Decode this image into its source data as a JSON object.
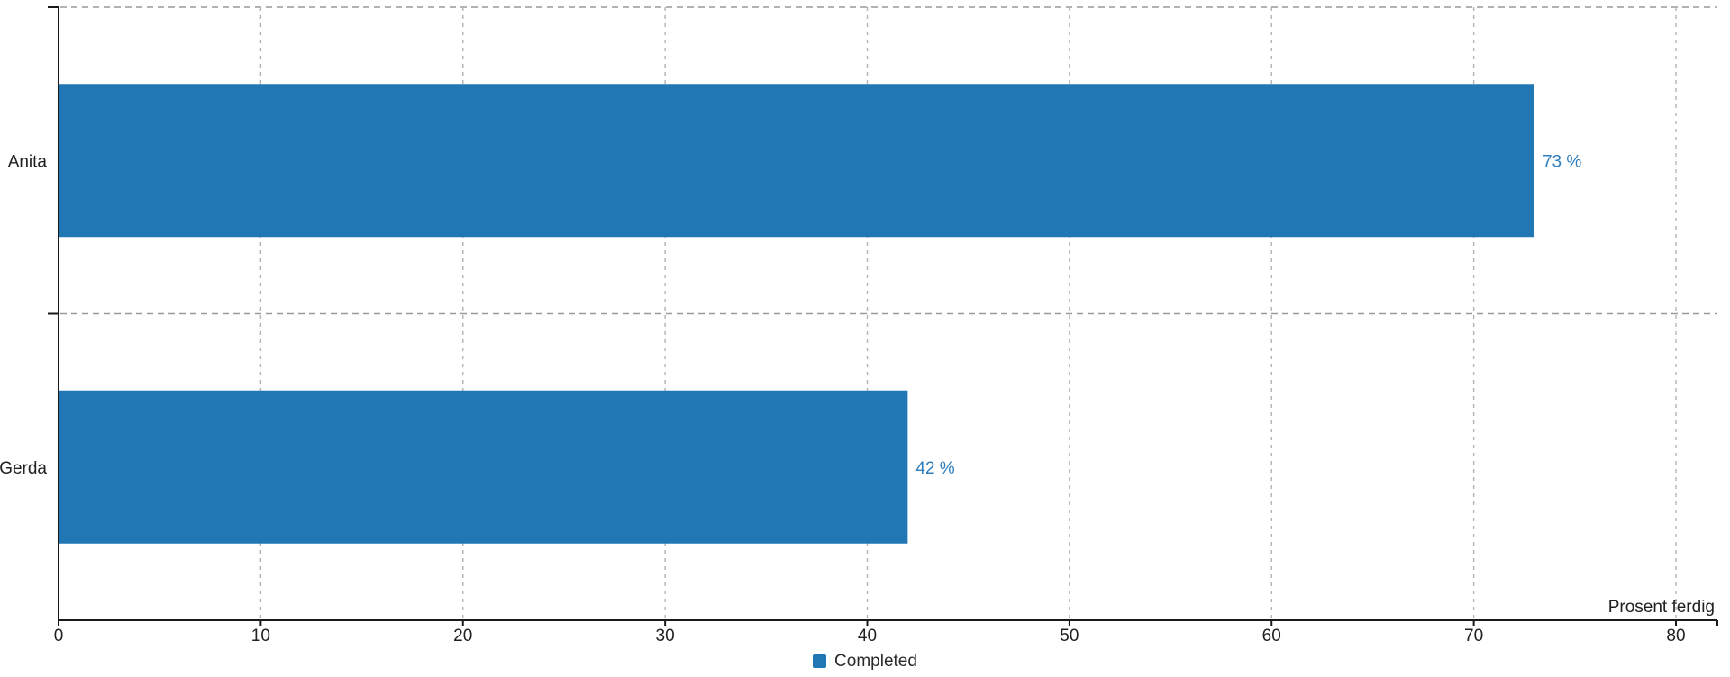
{
  "chart_data": {
    "type": "bar",
    "orientation": "horizontal",
    "categories": [
      "Anita",
      "Gerda"
    ],
    "series": [
      {
        "name": "Completed",
        "values": [
          73,
          42
        ],
        "color": "#2077b4"
      }
    ],
    "value_labels": [
      "73 %",
      "42 %"
    ],
    "xlabel": "Prosent ferdig",
    "ylabel": "",
    "xlim": [
      0,
      80
    ],
    "x_ticks": [
      0,
      10,
      20,
      30,
      40,
      50,
      60,
      70,
      80
    ],
    "grid": {
      "vertical": "dashed at each x tick",
      "horizontal": "dashed at category band boundaries"
    },
    "legend": {
      "position": "bottom-center",
      "items": [
        {
          "label": "Completed",
          "color": "#2077b4"
        }
      ]
    },
    "style": {
      "bar_color": "#2077b4",
      "value_label_color": "#2e7dbe",
      "axis_color": "#1a1a1a",
      "text_color": "#212121",
      "v_grid_color": "#b3b3b3",
      "h_grid_color": "#999999"
    }
  }
}
